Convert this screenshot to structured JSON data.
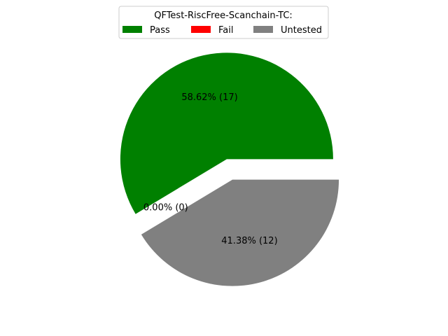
{
  "chart_data": {
    "type": "pie",
    "legend_title": "QFTest-RiscFree-Scanchain-TC:",
    "legend_placement": "top-center",
    "categories": [
      "Pass",
      "Fail",
      "Untested"
    ],
    "values": [
      17,
      0,
      12
    ],
    "percent_labels": [
      "58.62%  (17)",
      "0.00%  (0)",
      "41.38%  (12)"
    ],
    "colors": [
      "#008000",
      "#ff0000",
      "#808080"
    ],
    "exploded": [
      true,
      true,
      true
    ],
    "start_angle": 0,
    "grid": false
  }
}
